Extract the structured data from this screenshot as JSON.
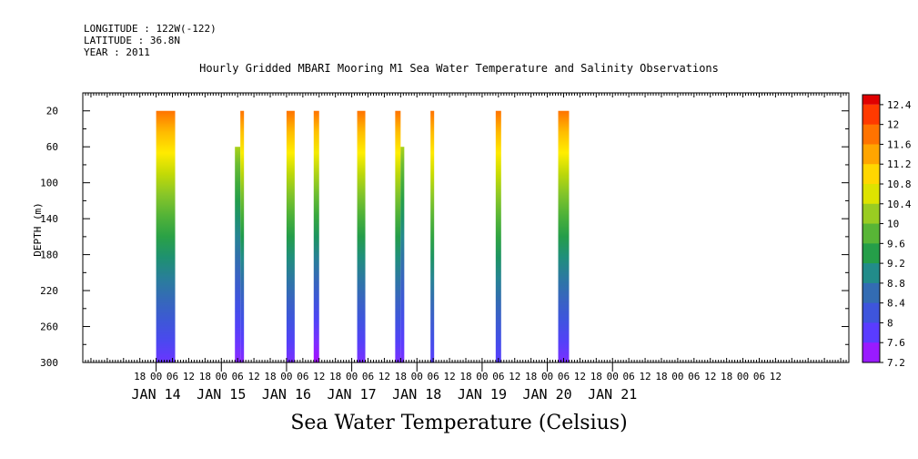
{
  "header": {
    "longitude": "LONGITUDE : 122W(-122)",
    "latitude": "LATITUDE : 36.8N",
    "year": "YEAR : 2011"
  },
  "chart_data": {
    "type": "heatmap",
    "title": "Hourly Gridded MBARI Mooring M1 Sea Water Temperature and Salinity Observations",
    "subtitle": "Sea Water Temperature (Celsius)",
    "ylabel": "DEPTH (m)",
    "xlabel": "",
    "x_unit": "hours since JAN 14 00",
    "xlim": [
      -27,
      255
    ],
    "ylim": [
      300,
      0
    ],
    "y_ticks": [
      20,
      60,
      100,
      140,
      180,
      220,
      260,
      300
    ],
    "x_hour_ticks": [
      {
        "h": -6,
        "label": "18"
      },
      {
        "h": 0,
        "label": "00"
      },
      {
        "h": 6,
        "label": "06"
      },
      {
        "h": 12,
        "label": "12"
      },
      {
        "h": 18,
        "label": "18"
      },
      {
        "h": 24,
        "label": "00"
      },
      {
        "h": 30,
        "label": "06"
      },
      {
        "h": 36,
        "label": "12"
      },
      {
        "h": 42,
        "label": "18"
      },
      {
        "h": 48,
        "label": "00"
      },
      {
        "h": 54,
        "label": "06"
      },
      {
        "h": 60,
        "label": "12"
      },
      {
        "h": 66,
        "label": "18"
      },
      {
        "h": 72,
        "label": "00"
      },
      {
        "h": 78,
        "label": "06"
      },
      {
        "h": 84,
        "label": "12"
      },
      {
        "h": 90,
        "label": "18"
      },
      {
        "h": 96,
        "label": "00"
      },
      {
        "h": 102,
        "label": "06"
      },
      {
        "h": 108,
        "label": "12"
      },
      {
        "h": 114,
        "label": "18"
      },
      {
        "h": 120,
        "label": "00"
      },
      {
        "h": 126,
        "label": "06"
      },
      {
        "h": 132,
        "label": "12"
      },
      {
        "h": 138,
        "label": "18"
      },
      {
        "h": 144,
        "label": "00"
      },
      {
        "h": 150,
        "label": "06"
      },
      {
        "h": 156,
        "label": "12"
      },
      {
        "h": 162,
        "label": "18"
      },
      {
        "h": 168,
        "label": "00"
      },
      {
        "h": 174,
        "label": "06"
      },
      {
        "h": 180,
        "label": "12"
      },
      {
        "h": 186,
        "label": "18"
      },
      {
        "h": 192,
        "label": "00"
      },
      {
        "h": 198,
        "label": "06"
      },
      {
        "h": 204,
        "label": "12"
      },
      {
        "h": 210,
        "label": "18"
      },
      {
        "h": 216,
        "label": "00"
      },
      {
        "h": 222,
        "label": "06"
      },
      {
        "h": 228,
        "label": "12"
      }
    ],
    "day_labels": [
      {
        "h": 0,
        "label": "JAN 14"
      },
      {
        "h": 24,
        "label": "JAN 15"
      },
      {
        "h": 48,
        "label": "JAN 16"
      },
      {
        "h": 72,
        "label": "JAN 17"
      },
      {
        "h": 96,
        "label": "JAN 18"
      },
      {
        "h": 120,
        "label": "JAN 19"
      },
      {
        "h": 144,
        "label": "JAN 20"
      },
      {
        "h": 168,
        "label": "JAN 21"
      }
    ],
    "colorbar_levels": [
      "12.4",
      "12",
      "11.6",
      "11.2",
      "10.8",
      "10.4",
      "10",
      "9.6",
      "9.2",
      "8.8",
      "8.4",
      "8",
      "7.6",
      "7.2"
    ],
    "color_range": [
      7.2,
      12.6
    ],
    "blocks": [
      {
        "x0": 0,
        "x1": 7,
        "top": 20,
        "surface": 11.8,
        "bottom": 7.7
      },
      {
        "x0": 29,
        "x1": 31,
        "top": 60,
        "surface": 10.3,
        "bottom": 7.5
      },
      {
        "x0": 31,
        "x1": 32,
        "top": 20,
        "surface": 11.8,
        "bottom": 7.5
      },
      {
        "x0": 48,
        "x1": 51,
        "top": 20,
        "surface": 11.8,
        "bottom": 7.6
      },
      {
        "x0": 58,
        "x1": 60,
        "top": 20,
        "surface": 11.8,
        "bottom": 7.3
      },
      {
        "x0": 74,
        "x1": 77,
        "top": 20,
        "surface": 11.8,
        "bottom": 7.6
      },
      {
        "x0": 88,
        "x1": 90,
        "top": 20,
        "surface": 11.8,
        "bottom": 7.6
      },
      {
        "x0": 90,
        "x1": 91,
        "top": 60,
        "surface": 10.3,
        "bottom": 7.6
      },
      {
        "x0": 101,
        "x1": 102,
        "top": 20,
        "surface": 11.8,
        "bottom": 7.8
      },
      {
        "x0": 125,
        "x1": 127,
        "top": 20,
        "surface": 11.8,
        "bottom": 7.8
      },
      {
        "x0": 148,
        "x1": 152,
        "top": 20,
        "surface": 11.8,
        "bottom": 7.6
      }
    ],
    "grid": false,
    "legend": "colorbar-right"
  }
}
